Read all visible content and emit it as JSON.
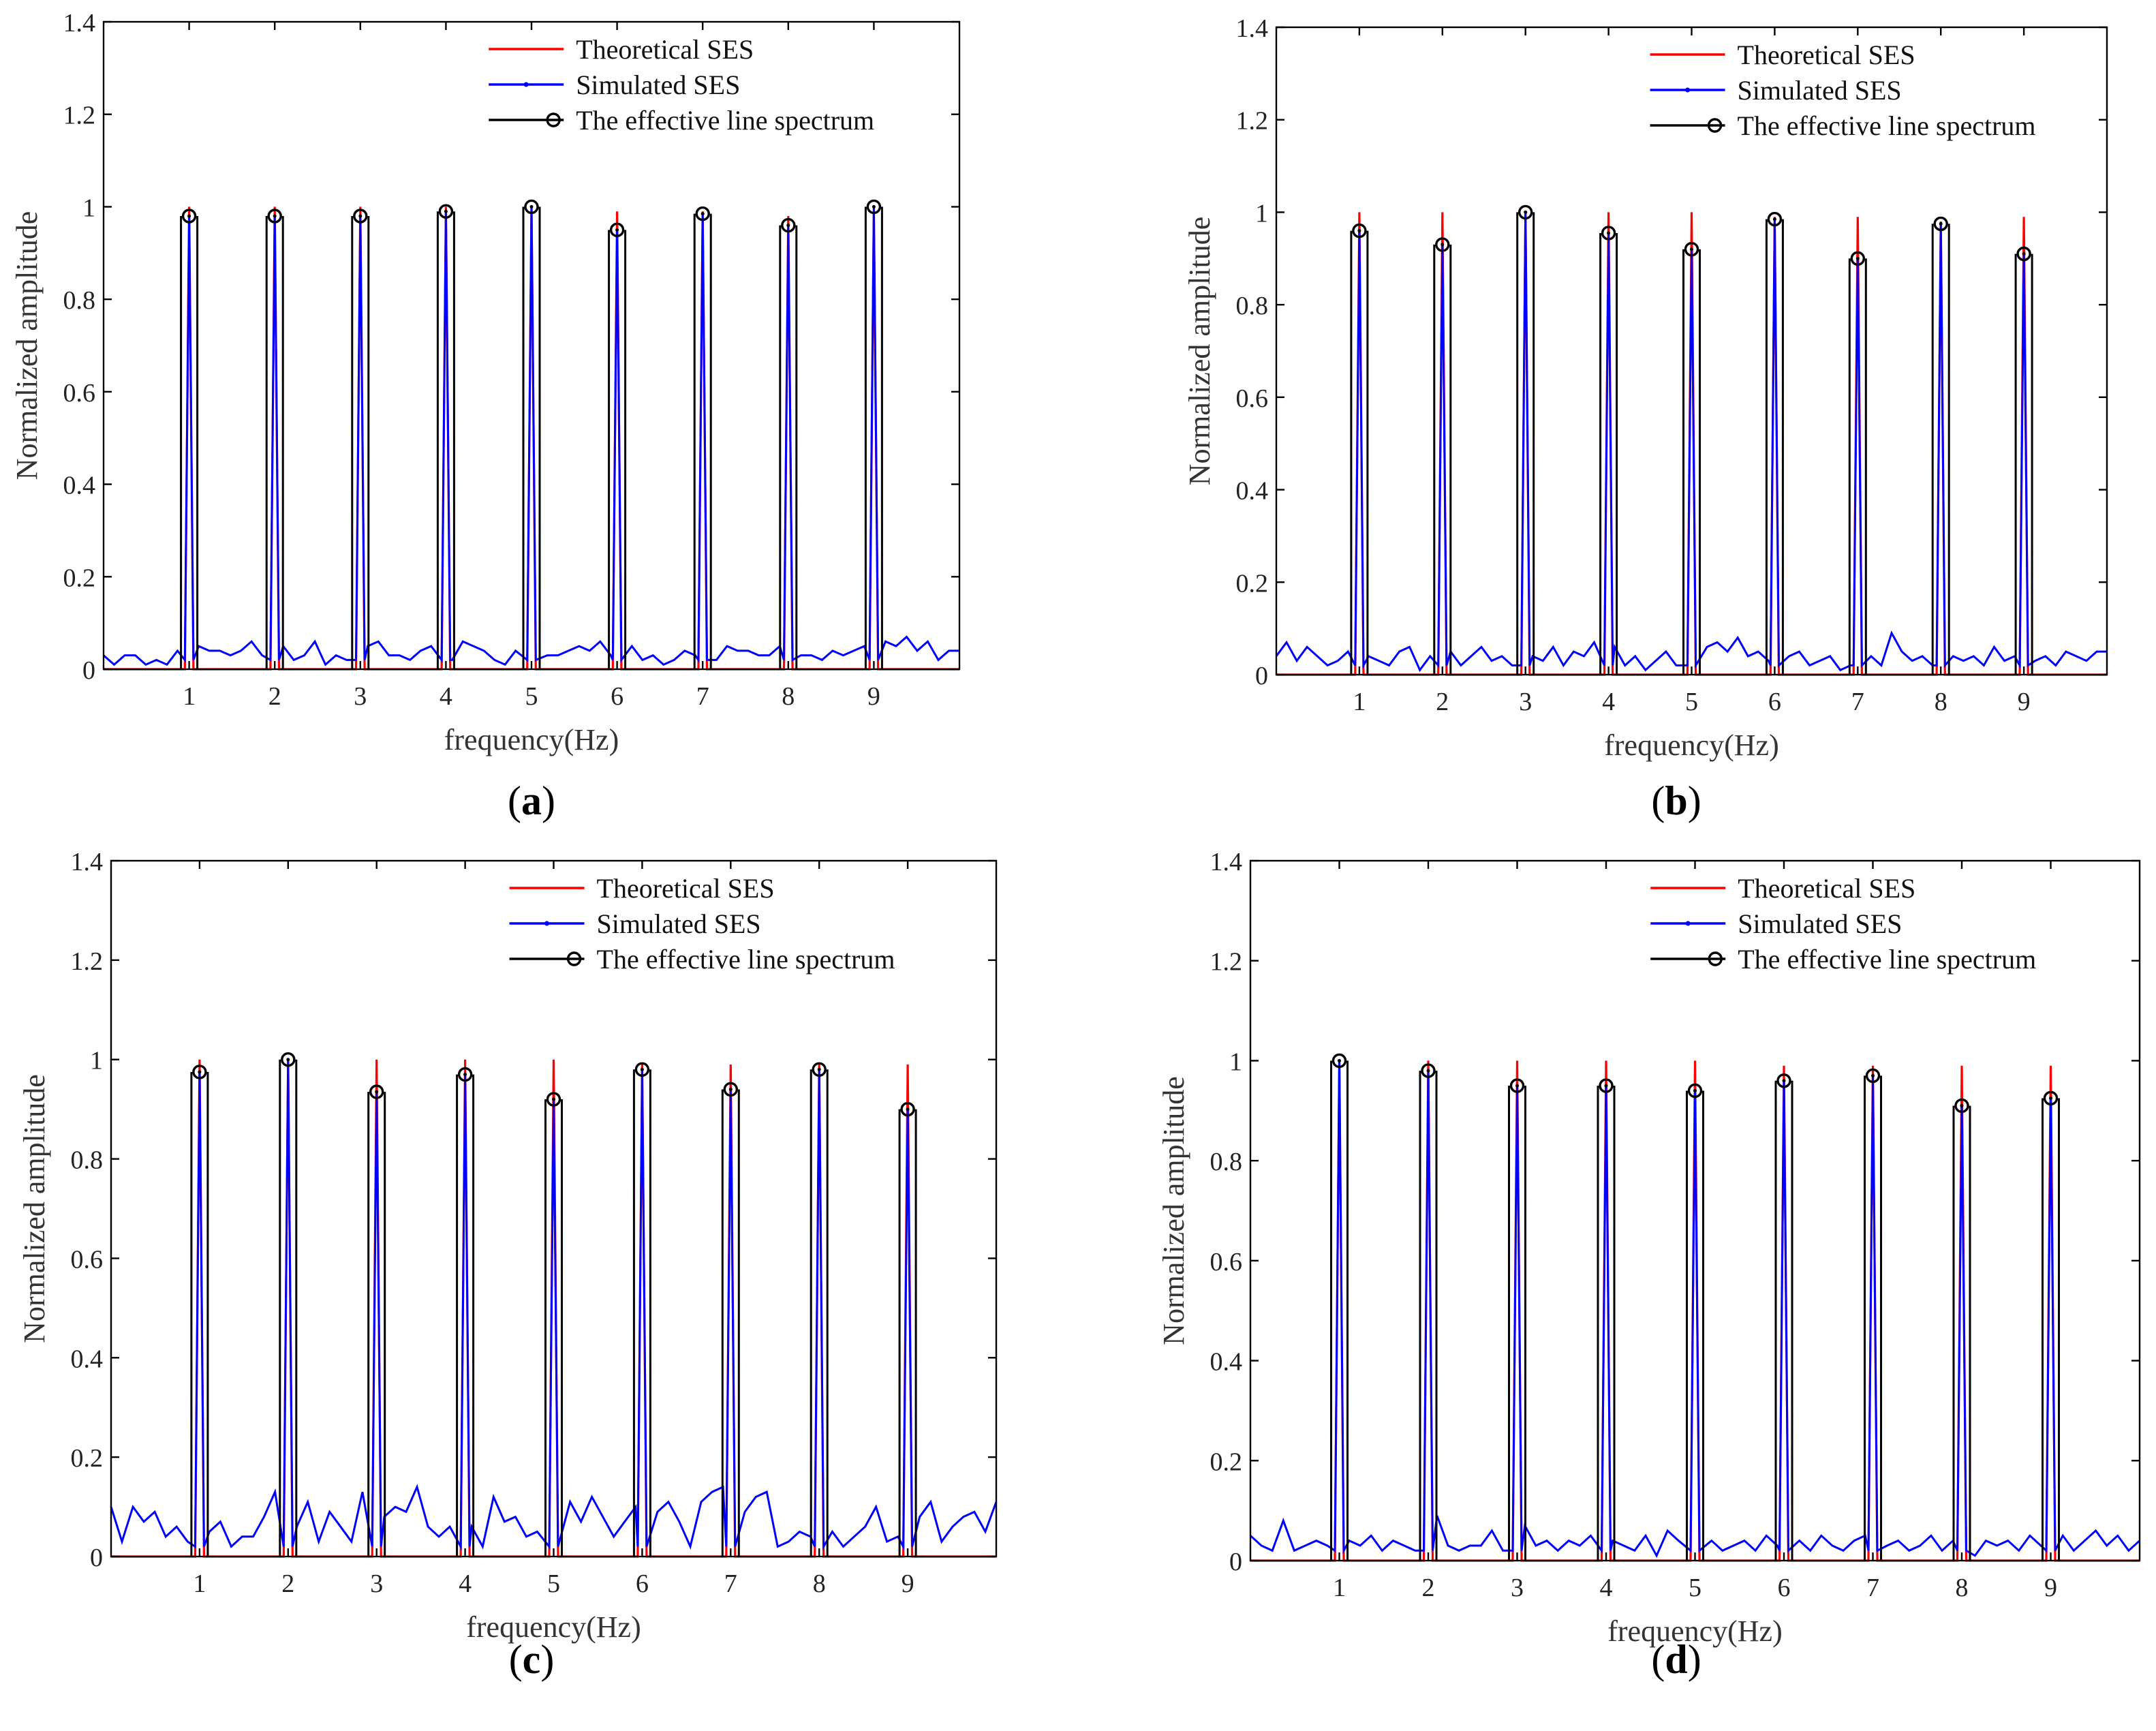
{
  "chart_data": [
    {
      "type": "line",
      "panel_label": "a",
      "xlabel": "frequency(Hz)",
      "ylabel": "Normalized amplitude",
      "xlim": [
        0,
        10
      ],
      "ylim": [
        0,
        1.4
      ],
      "xticks": [
        "1",
        "2",
        "3",
        "4",
        "5",
        "6",
        "7",
        "8",
        "9"
      ],
      "yticks": [
        "0",
        "0.2",
        "0.4",
        "0.6",
        "0.8",
        "1",
        "1.2",
        "1.4"
      ],
      "legend": [
        "Theoretical SES",
        "Simulated SES",
        "The effective line spectrum"
      ],
      "legend_position": "top-right",
      "series": [
        {
          "name": "Theoretical SES",
          "color": "#ff0000",
          "x": [
            1,
            2,
            3,
            4,
            5,
            6,
            7,
            8,
            9
          ],
          "values": [
            1.0,
            1.0,
            1.0,
            1.0,
            1.0,
            0.99,
            0.99,
            0.98,
            0.99
          ]
        },
        {
          "name": "Simulated SES",
          "color": "#0000ff",
          "noise": [
            0.03,
            0.01,
            0.03,
            0.03,
            0.01,
            0.02,
            0.01,
            0.04,
            0.03,
            0.05,
            0.04,
            0.04,
            0.03,
            0.04,
            0.06,
            0.03,
            0.06,
            0.05,
            0.02,
            0.03,
            0.06,
            0.01,
            0.03,
            0.02,
            0.01,
            0.05,
            0.06,
            0.03,
            0.03,
            0.02,
            0.04,
            0.05,
            0.03,
            0.02,
            0.06,
            0.05,
            0.04,
            0.02,
            0.01,
            0.04,
            0.03,
            0.02,
            0.03,
            0.03,
            0.04,
            0.05,
            0.04,
            0.06,
            0.03,
            0.04,
            0.05,
            0.02,
            0.03,
            0.01,
            0.02,
            0.04,
            0.03,
            0.05,
            0.02,
            0.05,
            0.04,
            0.04,
            0.03,
            0.03,
            0.05,
            0.02,
            0.03,
            0.03,
            0.02,
            0.04,
            0.03,
            0.04,
            0.05,
            0.04,
            0.06,
            0.05,
            0.07,
            0.04,
            0.06,
            0.02,
            0.04,
            0.04
          ]
        },
        {
          "name": "The effective line spectrum",
          "color": "#000000",
          "x": [
            1,
            2,
            3,
            4,
            5,
            6,
            7,
            8,
            9
          ],
          "values": [
            0.98,
            0.98,
            0.98,
            0.99,
            1.0,
            0.95,
            0.985,
            0.96,
            1.0
          ]
        }
      ]
    },
    {
      "type": "line",
      "panel_label": "b",
      "xlabel": "frequency(Hz)",
      "ylabel": "Normalized amplitude",
      "xlim": [
        0,
        10
      ],
      "ylim": [
        0,
        1.4
      ],
      "xticks": [
        "1",
        "2",
        "3",
        "4",
        "5",
        "6",
        "7",
        "8",
        "9"
      ],
      "yticks": [
        "0",
        "0.2",
        "0.4",
        "0.6",
        "0.8",
        "1",
        "1.2",
        "1.4"
      ],
      "legend": [
        "Theoretical SES",
        "Simulated SES",
        "The effective line spectrum"
      ],
      "legend_position": "top-right",
      "series": [
        {
          "name": "Theoretical SES",
          "color": "#ff0000",
          "x": [
            1,
            2,
            3,
            4,
            5,
            6,
            7,
            8,
            9
          ],
          "values": [
            1.0,
            1.0,
            1.0,
            1.0,
            1.0,
            0.99,
            0.99,
            0.98,
            0.99
          ]
        },
        {
          "name": "Simulated SES",
          "color": "#0000ff",
          "noise": [
            0.04,
            0.07,
            0.03,
            0.06,
            0.04,
            0.02,
            0.03,
            0.05,
            0.03,
            0.04,
            0.03,
            0.02,
            0.05,
            0.06,
            0.01,
            0.04,
            0.03,
            0.05,
            0.02,
            0.04,
            0.06,
            0.03,
            0.04,
            0.02,
            0.05,
            0.04,
            0.03,
            0.06,
            0.02,
            0.05,
            0.04,
            0.07,
            0.03,
            0.06,
            0.02,
            0.04,
            0.01,
            0.03,
            0.05,
            0.02,
            0.09,
            0.04,
            0.06,
            0.07,
            0.05,
            0.08,
            0.04,
            0.05,
            0.03,
            0.02,
            0.04,
            0.05,
            0.02,
            0.03,
            0.04,
            0.01,
            0.02,
            0.03,
            0.04,
            0.02,
            0.09,
            0.05,
            0.03,
            0.04,
            0.02,
            0.05,
            0.04,
            0.03,
            0.04,
            0.02,
            0.06,
            0.03,
            0.04,
            0.05,
            0.03,
            0.04,
            0.02,
            0.05,
            0.04,
            0.03,
            0.05,
            0.05
          ]
        },
        {
          "name": "The effective line spectrum",
          "color": "#000000",
          "x": [
            1,
            2,
            3,
            4,
            5,
            6,
            7,
            8,
            9
          ],
          "values": [
            0.96,
            0.93,
            1.0,
            0.955,
            0.92,
            0.985,
            0.9,
            0.975,
            0.91
          ]
        }
      ]
    },
    {
      "type": "line",
      "panel_label": "c",
      "xlabel": "frequency(Hz)",
      "ylabel": "Normalized amplitude",
      "xlim": [
        0,
        10
      ],
      "ylim": [
        0,
        1.4
      ],
      "xticks": [
        "1",
        "2",
        "3",
        "4",
        "5",
        "6",
        "7",
        "8",
        "9"
      ],
      "yticks": [
        "0",
        "0.2",
        "0.4",
        "0.6",
        "0.8",
        "1",
        "1.2",
        "1.4"
      ],
      "legend": [
        "Theoretical SES",
        "Simulated SES",
        "The effective line spectrum"
      ],
      "legend_position": "top-right",
      "series": [
        {
          "name": "Theoretical SES",
          "color": "#ff0000",
          "x": [
            1,
            2,
            3,
            4,
            5,
            6,
            7,
            8,
            9
          ],
          "values": [
            1.0,
            1.0,
            1.0,
            1.0,
            1.0,
            0.99,
            0.99,
            0.99,
            0.99
          ]
        },
        {
          "name": "Simulated SES",
          "color": "#0000ff",
          "noise": [
            0.1,
            0.03,
            0.1,
            0.07,
            0.09,
            0.04,
            0.06,
            0.03,
            0.03,
            0.05,
            0.07,
            0.02,
            0.04,
            0.04,
            0.08,
            0.13,
            0.05,
            0.06,
            0.11,
            0.03,
            0.09,
            0.06,
            0.03,
            0.13,
            0.04,
            0.08,
            0.1,
            0.09,
            0.14,
            0.06,
            0.04,
            0.06,
            0.08,
            0.06,
            0.02,
            0.12,
            0.07,
            0.08,
            0.04,
            0.05,
            0.03,
            0.02,
            0.11,
            0.07,
            0.12,
            0.08,
            0.04,
            0.07,
            0.1,
            0.03,
            0.09,
            0.11,
            0.07,
            0.02,
            0.11,
            0.13,
            0.14,
            0.05,
            0.09,
            0.12,
            0.13,
            0.02,
            0.03,
            0.05,
            0.04,
            0.03,
            0.05,
            0.02,
            0.04,
            0.06,
            0.1,
            0.03,
            0.04,
            0.05,
            0.08,
            0.11,
            0.03,
            0.06,
            0.08,
            0.09,
            0.05,
            0.11
          ]
        },
        {
          "name": "The effective line spectrum",
          "color": "#000000",
          "x": [
            1,
            2,
            3,
            4,
            5,
            6,
            7,
            8,
            9
          ],
          "values": [
            0.975,
            1.0,
            0.935,
            0.97,
            0.92,
            0.98,
            0.94,
            0.98,
            0.9
          ]
        }
      ]
    },
    {
      "type": "line",
      "panel_label": "d",
      "xlabel": "frequency(Hz)",
      "ylabel": "Normalized amplitude",
      "xlim": [
        0,
        10
      ],
      "ylim": [
        0,
        1.4
      ],
      "xticks": [
        "1",
        "2",
        "3",
        "4",
        "5",
        "6",
        "7",
        "8",
        "9"
      ],
      "yticks": [
        "0",
        "0.2",
        "0.4",
        "0.6",
        "0.8",
        "1",
        "1.2",
        "1.4"
      ],
      "legend": [
        "Theoretical SES",
        "Simulated SES",
        "The effective line spectrum"
      ],
      "legend_position": "top-right",
      "series": [
        {
          "name": "Theoretical SES",
          "color": "#ff0000",
          "x": [
            1,
            2,
            3,
            4,
            5,
            6,
            7,
            8,
            9
          ],
          "values": [
            1.0,
            1.0,
            1.0,
            1.0,
            1.0,
            0.99,
            0.99,
            0.99,
            0.99
          ]
        },
        {
          "name": "Simulated SES",
          "color": "#0000ff",
          "noise": [
            0.05,
            0.03,
            0.02,
            0.08,
            0.02,
            0.03,
            0.04,
            0.03,
            0.02,
            0.04,
            0.03,
            0.05,
            0.02,
            0.04,
            0.03,
            0.02,
            0.01,
            0.09,
            0.03,
            0.02,
            0.03,
            0.03,
            0.06,
            0.02,
            0.04,
            0.07,
            0.03,
            0.04,
            0.02,
            0.04,
            0.03,
            0.05,
            0.02,
            0.04,
            0.03,
            0.02,
            0.05,
            0.01,
            0.06,
            0.04,
            0.07,
            0.03,
            0.04,
            0.02,
            0.03,
            0.04,
            0.02,
            0.05,
            0.03,
            0.03,
            0.04,
            0.02,
            0.05,
            0.03,
            0.02,
            0.04,
            0.05,
            0.02,
            0.03,
            0.04,
            0.02,
            0.03,
            0.05,
            0.02,
            0.04,
            0.03,
            0.01,
            0.04,
            0.03,
            0.04,
            0.02,
            0.05,
            0.03,
            0.04,
            0.05,
            0.02,
            0.04,
            0.06,
            0.03,
            0.05,
            0.02,
            0.04
          ]
        },
        {
          "name": "The effective line spectrum",
          "color": "#000000",
          "x": [
            1,
            2,
            3,
            4,
            5,
            6,
            7,
            8,
            9
          ],
          "values": [
            1.0,
            0.98,
            0.95,
            0.95,
            0.94,
            0.96,
            0.97,
            0.91,
            0.925
          ]
        }
      ]
    }
  ]
}
